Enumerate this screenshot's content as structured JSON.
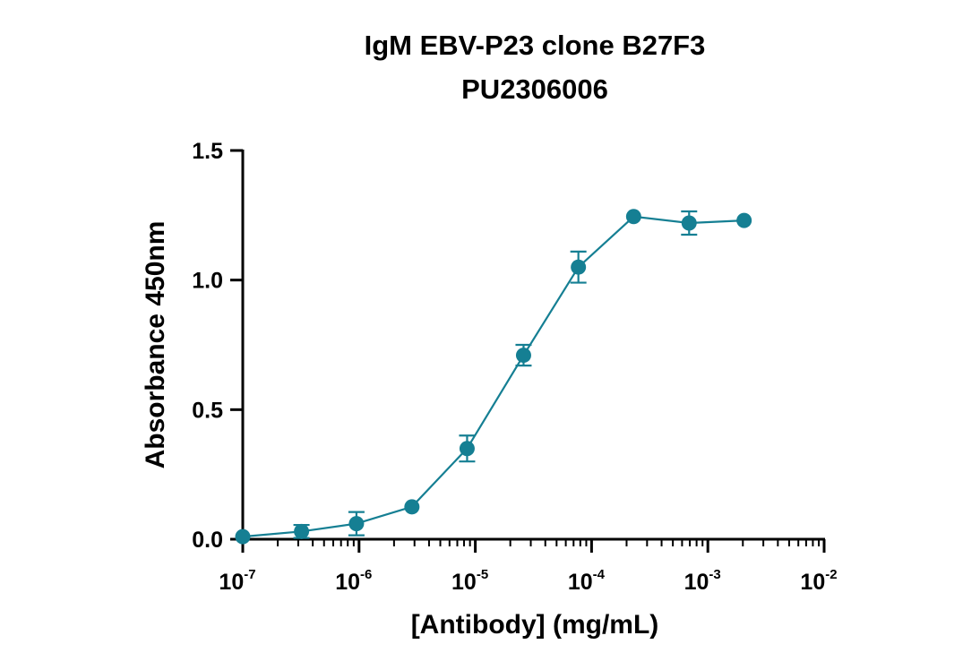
{
  "chart_data": {
    "type": "line",
    "title": [
      "IgM EBV-P23 clone B27F3",
      "PU2306006"
    ],
    "xlabel": "[Antibody] (mg/mL)",
    "ylabel": "Absorbance 450nm",
    "xscale": "log",
    "xlim": [
      1e-07,
      0.01
    ],
    "ylim": [
      0.0,
      1.5
    ],
    "x_ticks": [
      {
        "base": "10",
        "exp": "-7"
      },
      {
        "base": "10",
        "exp": "-6"
      },
      {
        "base": "10",
        "exp": "-5"
      },
      {
        "base": "10",
        "exp": "-4"
      },
      {
        "base": "10",
        "exp": "-3"
      },
      {
        "base": "10",
        "exp": "-2"
      }
    ],
    "y_ticks": [
      "0.0",
      "0.5",
      "1.0",
      "1.5"
    ],
    "grid": false,
    "legend": "none",
    "series": [
      {
        "color": "#157F93",
        "points": [
          {
            "x": 1e-07,
            "y": 0.01,
            "err": 0.0
          },
          {
            "x": 3.2e-07,
            "y": 0.03,
            "err": 0.025
          },
          {
            "x": 9.5e-07,
            "y": 0.06,
            "err": 0.045
          },
          {
            "x": 2.85e-06,
            "y": 0.125,
            "err": 0.0
          },
          {
            "x": 8.5e-06,
            "y": 0.35,
            "err": 0.05
          },
          {
            "x": 2.6e-05,
            "y": 0.71,
            "err": 0.04
          },
          {
            "x": 7.7e-05,
            "y": 1.05,
            "err": 0.06
          },
          {
            "x": 0.00023,
            "y": 1.245,
            "err": 0.0
          },
          {
            "x": 0.00069,
            "y": 1.22,
            "err": 0.045
          },
          {
            "x": 0.00205,
            "y": 1.23,
            "err": 0.0
          }
        ]
      }
    ]
  }
}
